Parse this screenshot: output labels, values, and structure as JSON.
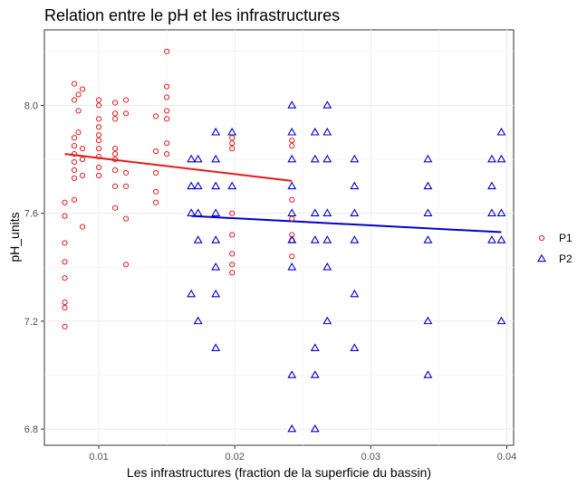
{
  "chart_data": {
    "type": "scatter",
    "title": "Relation entre le pH et les infrastructures",
    "xlabel": "Les infrastructures (fraction de la superficie du bassin)",
    "ylabel": "pH_units",
    "xlim": [
      0.006,
      0.0405
    ],
    "ylim": [
      6.74,
      8.28
    ],
    "x_ticks": [
      0.01,
      0.02,
      0.03,
      0.04
    ],
    "x_tick_labels": [
      "0.01",
      "0.02",
      "0.03",
      "0.04"
    ],
    "y_ticks": [
      6.8,
      7.2,
      7.6,
      8.0
    ],
    "y_tick_labels": [
      "6.8",
      "7.2",
      "7.6",
      "8.0"
    ],
    "grid": true,
    "legend_position": "right",
    "series": [
      {
        "name": "P1",
        "color": "#e41a1c",
        "marker": "circle",
        "points": [
          [
            0.0075,
            7.64
          ],
          [
            0.0075,
            7.59
          ],
          [
            0.0075,
            7.49
          ],
          [
            0.0075,
            7.42
          ],
          [
            0.0075,
            7.36
          ],
          [
            0.0075,
            7.27
          ],
          [
            0.0075,
            7.25
          ],
          [
            0.0075,
            7.18
          ],
          [
            0.0082,
            8.08
          ],
          [
            0.0082,
            8.02
          ],
          [
            0.0082,
            7.88
          ],
          [
            0.0082,
            7.85
          ],
          [
            0.0082,
            7.82
          ],
          [
            0.0082,
            7.79
          ],
          [
            0.0082,
            7.76
          ],
          [
            0.0082,
            7.73
          ],
          [
            0.0082,
            7.65
          ],
          [
            0.0085,
            8.04
          ],
          [
            0.0085,
            7.98
          ],
          [
            0.0085,
            7.9
          ],
          [
            0.0088,
            8.06
          ],
          [
            0.0088,
            7.84
          ],
          [
            0.0088,
            7.8
          ],
          [
            0.0088,
            7.74
          ],
          [
            0.0088,
            7.55
          ],
          [
            0.01,
            8.02
          ],
          [
            0.01,
            8.0
          ],
          [
            0.01,
            7.95
          ],
          [
            0.01,
            7.92
          ],
          [
            0.01,
            7.89
          ],
          [
            0.01,
            7.87
          ],
          [
            0.01,
            7.84
          ],
          [
            0.01,
            7.81
          ],
          [
            0.01,
            7.77
          ],
          [
            0.01,
            7.74
          ],
          [
            0.0112,
            8.01
          ],
          [
            0.0112,
            7.97
          ],
          [
            0.0112,
            7.95
          ],
          [
            0.0112,
            7.84
          ],
          [
            0.0112,
            7.82
          ],
          [
            0.0112,
            7.8
          ],
          [
            0.0112,
            7.76
          ],
          [
            0.0112,
            7.7
          ],
          [
            0.0112,
            7.62
          ],
          [
            0.012,
            8.02
          ],
          [
            0.012,
            7.97
          ],
          [
            0.012,
            7.75
          ],
          [
            0.012,
            7.7
          ],
          [
            0.012,
            7.58
          ],
          [
            0.012,
            7.41
          ],
          [
            0.0142,
            7.96
          ],
          [
            0.0142,
            7.83
          ],
          [
            0.0142,
            7.75
          ],
          [
            0.0142,
            7.68
          ],
          [
            0.0142,
            7.64
          ],
          [
            0.015,
            8.2
          ],
          [
            0.015,
            8.07
          ],
          [
            0.015,
            8.03
          ],
          [
            0.015,
            7.98
          ],
          [
            0.015,
            7.95
          ],
          [
            0.015,
            7.86
          ],
          [
            0.015,
            7.82
          ],
          [
            0.0198,
            7.88
          ],
          [
            0.0198,
            7.86
          ],
          [
            0.0198,
            7.84
          ],
          [
            0.0198,
            7.6
          ],
          [
            0.0198,
            7.52
          ],
          [
            0.0198,
            7.45
          ],
          [
            0.0198,
            7.41
          ],
          [
            0.0198,
            7.38
          ],
          [
            0.0242,
            7.87
          ],
          [
            0.0242,
            7.85
          ],
          [
            0.0242,
            7.65
          ],
          [
            0.0242,
            7.58
          ],
          [
            0.0242,
            7.52
          ],
          [
            0.0242,
            7.5
          ],
          [
            0.0242,
            7.44
          ]
        ],
        "trend": {
          "x": [
            0.0075,
            0.0242
          ],
          "y": [
            7.82,
            7.72
          ]
        }
      },
      {
        "name": "P2",
        "color": "#0000cc",
        "marker": "triangle",
        "points": [
          [
            0.0168,
            7.8
          ],
          [
            0.0168,
            7.7
          ],
          [
            0.0168,
            7.6
          ],
          [
            0.0168,
            7.3
          ],
          [
            0.0173,
            7.8
          ],
          [
            0.0173,
            7.7
          ],
          [
            0.0173,
            7.6
          ],
          [
            0.0173,
            7.5
          ],
          [
            0.0173,
            7.2
          ],
          [
            0.0186,
            7.9
          ],
          [
            0.0186,
            7.8
          ],
          [
            0.0186,
            7.7
          ],
          [
            0.0186,
            7.6
          ],
          [
            0.0186,
            7.5
          ],
          [
            0.0186,
            7.4
          ],
          [
            0.0186,
            7.3
          ],
          [
            0.0186,
            7.1
          ],
          [
            0.0198,
            7.9
          ],
          [
            0.0198,
            7.7
          ],
          [
            0.0242,
            8.0
          ],
          [
            0.0242,
            7.9
          ],
          [
            0.0242,
            7.8
          ],
          [
            0.0242,
            7.7
          ],
          [
            0.0242,
            7.6
          ],
          [
            0.0242,
            7.5
          ],
          [
            0.0242,
            7.4
          ],
          [
            0.0242,
            7.0
          ],
          [
            0.0242,
            6.8
          ],
          [
            0.0259,
            7.9
          ],
          [
            0.0259,
            7.8
          ],
          [
            0.0259,
            7.6
          ],
          [
            0.0259,
            7.5
          ],
          [
            0.0259,
            7.1
          ],
          [
            0.0259,
            7.0
          ],
          [
            0.0259,
            6.8
          ],
          [
            0.0268,
            8.0
          ],
          [
            0.0268,
            7.9
          ],
          [
            0.0268,
            7.8
          ],
          [
            0.0268,
            7.6
          ],
          [
            0.0268,
            7.5
          ],
          [
            0.0268,
            7.4
          ],
          [
            0.0268,
            7.2
          ],
          [
            0.0288,
            7.8
          ],
          [
            0.0288,
            7.7
          ],
          [
            0.0288,
            7.6
          ],
          [
            0.0288,
            7.5
          ],
          [
            0.0288,
            7.3
          ],
          [
            0.0288,
            7.1
          ],
          [
            0.0342,
            7.8
          ],
          [
            0.0342,
            7.7
          ],
          [
            0.0342,
            7.6
          ],
          [
            0.0342,
            7.5
          ],
          [
            0.0342,
            7.2
          ],
          [
            0.0342,
            7.0
          ],
          [
            0.0389,
            7.8
          ],
          [
            0.0389,
            7.7
          ],
          [
            0.0389,
            7.6
          ],
          [
            0.0389,
            7.5
          ],
          [
            0.0396,
            7.9
          ],
          [
            0.0396,
            7.8
          ],
          [
            0.0396,
            7.6
          ],
          [
            0.0396,
            7.5
          ],
          [
            0.0396,
            7.2
          ]
        ],
        "trend": {
          "x": [
            0.0168,
            0.0396
          ],
          "y": [
            7.59,
            7.53
          ]
        }
      }
    ]
  }
}
